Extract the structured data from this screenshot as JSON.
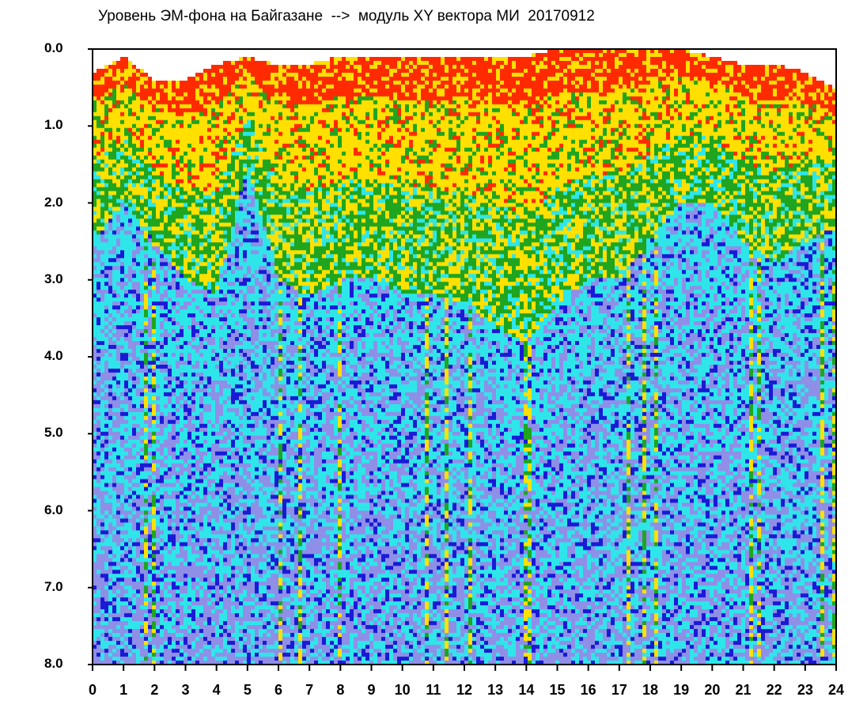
{
  "chart_data": {
    "type": "heatmap",
    "title": "Уровень ЭМ-фона на Байгазане  -->  модуль XY вектора МИ  20170912",
    "xlabel": "",
    "ylabel": "",
    "x_ticks": [
      "0",
      "1",
      "2",
      "3",
      "4",
      "5",
      "6",
      "7",
      "8",
      "9",
      "10",
      "11",
      "12",
      "13",
      "14",
      "15",
      "16",
      "17",
      "18",
      "19",
      "20",
      "21",
      "22",
      "23",
      "24"
    ],
    "y_ticks": [
      "0.0",
      "1.0",
      "2.0",
      "3.0",
      "4.0",
      "5.0",
      "6.0",
      "7.0",
      "8.0"
    ],
    "xlim": [
      0,
      24
    ],
    "ylim": [
      0.0,
      8.0
    ],
    "y_inverted": true,
    "colors": {
      "high": "#ff2a00",
      "upper": "#ffe000",
      "mid": "#1fa51f",
      "low": "#2ee6ea",
      "lowest": "#1a1ad6",
      "empty": "#ffffff"
    },
    "top_boundary_by_hour": [
      {
        "x": 0,
        "y": 0.3
      },
      {
        "x": 0.5,
        "y": 0.2
      },
      {
        "x": 1,
        "y": 0.1
      },
      {
        "x": 2,
        "y": 0.4
      },
      {
        "x": 3,
        "y": 0.4
      },
      {
        "x": 4,
        "y": 0.2
      },
      {
        "x": 5,
        "y": 0.1
      },
      {
        "x": 6,
        "y": 0.2
      },
      {
        "x": 7,
        "y": 0.2
      },
      {
        "x": 8,
        "y": 0.1
      },
      {
        "x": 9,
        "y": 0.1
      },
      {
        "x": 10,
        "y": 0.1
      },
      {
        "x": 11,
        "y": 0.1
      },
      {
        "x": 12,
        "y": 0.1
      },
      {
        "x": 13,
        "y": 0.1
      },
      {
        "x": 14,
        "y": 0.1
      },
      {
        "x": 15,
        "y": 0.0
      },
      {
        "x": 16,
        "y": 0.0
      },
      {
        "x": 17,
        "y": 0.0
      },
      {
        "x": 18,
        "y": 0.0
      },
      {
        "x": 19,
        "y": 0.0
      },
      {
        "x": 20,
        "y": 0.1
      },
      {
        "x": 21,
        "y": 0.2
      },
      {
        "x": 22,
        "y": 0.2
      },
      {
        "x": 23,
        "y": 0.3
      },
      {
        "x": 24,
        "y": 0.5
      }
    ],
    "green_to_cyan_boundary_by_hour": [
      {
        "x": 0,
        "y": 2.5
      },
      {
        "x": 1,
        "y": 2.0
      },
      {
        "x": 2,
        "y": 2.5
      },
      {
        "x": 3,
        "y": 3.0
      },
      {
        "x": 4,
        "y": 3.2
      },
      {
        "x": 5,
        "y": 1.5
      },
      {
        "x": 6,
        "y": 3.0
      },
      {
        "x": 7,
        "y": 3.2
      },
      {
        "x": 8,
        "y": 3.0
      },
      {
        "x": 9,
        "y": 3.0
      },
      {
        "x": 10,
        "y": 3.2
      },
      {
        "x": 11,
        "y": 3.2
      },
      {
        "x": 12,
        "y": 3.3
      },
      {
        "x": 13,
        "y": 3.6
      },
      {
        "x": 14,
        "y": 3.8
      },
      {
        "x": 15,
        "y": 3.3
      },
      {
        "x": 16,
        "y": 3.0
      },
      {
        "x": 17,
        "y": 3.0
      },
      {
        "x": 18,
        "y": 2.5
      },
      {
        "x": 19,
        "y": 2.0
      },
      {
        "x": 20,
        "y": 2.0
      },
      {
        "x": 21,
        "y": 2.5
      },
      {
        "x": 22,
        "y": 2.8
      },
      {
        "x": 23,
        "y": 2.5
      },
      {
        "x": 24,
        "y": 2.3
      }
    ]
  }
}
